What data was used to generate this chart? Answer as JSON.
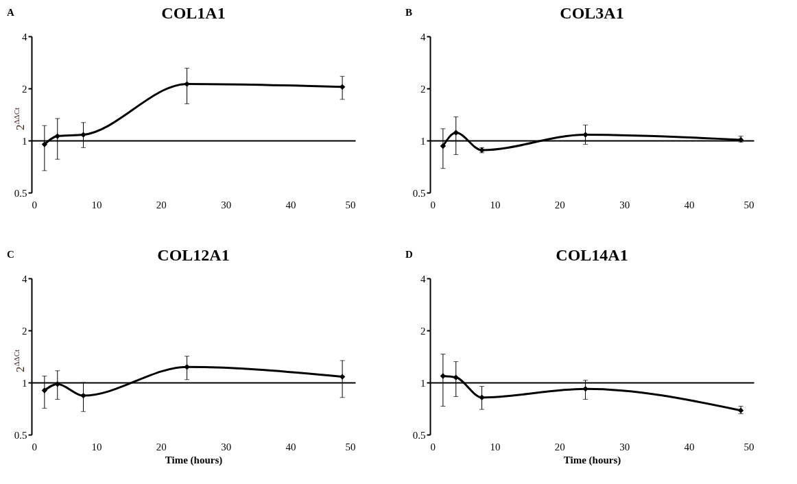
{
  "chart_data": [
    {
      "type": "line",
      "title": "COL1A1",
      "annotations": [
        "A"
      ],
      "ylabel": "2$^{ΔΔCt}$",
      "x": [
        2,
        4,
        8,
        24,
        48
      ],
      "marker": "diamond",
      "log": "y",
      "xlim": [
        0,
        50
      ],
      "xticks": [
        0,
        10,
        20,
        30,
        40,
        50
      ],
      "ylim": [
        0.5,
        4
      ],
      "yticks": [
        0.5,
        1,
        2,
        4
      ],
      "series": [
        {
          "color": "#000000",
          "values": [
            0.95,
            1.06,
            1.08,
            2.12,
            2.04
          ],
          "errors": [
            [
              0.67,
              1.22
            ],
            [
              0.78,
              1.34
            ],
            [
              0.91,
              1.27
            ],
            [
              1.63,
              2.62
            ],
            [
              1.73,
              2.35
            ]
          ]
        }
      ]
    },
    {
      "type": "line",
      "title": "COL3A1",
      "annotations": [
        "B"
      ],
      "x": [
        2,
        4,
        8,
        24,
        48
      ],
      "marker": "diamond",
      "log": "y",
      "xlim": [
        0,
        50
      ],
      "xticks": [
        0,
        10,
        20,
        30,
        40,
        50
      ],
      "ylim": [
        0.5,
        4
      ],
      "yticks": [
        0.5,
        1,
        2,
        4
      ],
      "series": [
        {
          "color": "#000000",
          "values": [
            0.93,
            1.11,
            0.88,
            1.08,
            1.01
          ],
          "errors": [
            [
              0.69,
              1.17
            ],
            [
              0.83,
              1.37
            ],
            [
              0.85,
              0.91
            ],
            [
              0.95,
              1.23
            ],
            [
              0.98,
              1.06
            ]
          ]
        }
      ]
    },
    {
      "type": "line",
      "title": "COL12A1",
      "annotations": [
        "C"
      ],
      "ylabel": "2$^{ΔΔCt}$",
      "xlabel": "Time (hours)",
      "x": [
        2,
        4,
        8,
        24,
        48
      ],
      "marker": "diamond",
      "log": "y",
      "xlim": [
        0,
        50
      ],
      "xticks": [
        0,
        10,
        20,
        30,
        40,
        50
      ],
      "ylim": [
        0.5,
        4
      ],
      "yticks": [
        0.5,
        1,
        2,
        4
      ],
      "series": [
        {
          "color": "#000000",
          "values": [
            0.9,
            0.98,
            0.84,
            1.23,
            1.08
          ],
          "errors": [
            [
              0.71,
              1.09
            ],
            [
              0.8,
              1.17
            ],
            [
              0.68,
              1.0
            ],
            [
              1.04,
              1.42
            ],
            [
              0.82,
              1.34
            ]
          ]
        }
      ]
    },
    {
      "type": "line",
      "title": "COL14A1",
      "annotations": [
        "D"
      ],
      "xlabel": "Time (hours)",
      "x": [
        2,
        4,
        8,
        24,
        48
      ],
      "marker": "diamond",
      "log": "y",
      "xlim": [
        0,
        50
      ],
      "xticks": [
        0,
        10,
        20,
        30,
        40,
        50
      ],
      "ylim": [
        0.5,
        4
      ],
      "yticks": [
        0.5,
        1,
        2,
        4
      ],
      "series": [
        {
          "color": "#000000",
          "values": [
            1.09,
            1.07,
            0.82,
            0.92,
            0.69
          ],
          "errors": [
            [
              0.73,
              1.46
            ],
            [
              0.83,
              1.32
            ],
            [
              0.7,
              0.95
            ],
            [
              0.8,
              1.03
            ],
            [
              0.66,
              0.73
            ]
          ]
        }
      ]
    }
  ]
}
